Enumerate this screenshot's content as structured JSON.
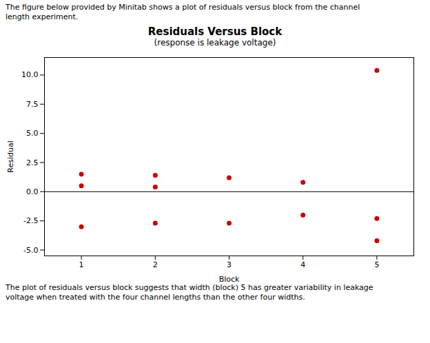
{
  "chart_data": {
    "type": "scatter",
    "title": "Residuals Versus Block",
    "subtitle": "(response is leakage voltage)",
    "annotations": [
      "The figure below provided by Minitab shows a plot of residuals versus block from the channel\nlength experiment.",
      "The plot of residuals versus block suggests that width (block) 5 has greater variability in leakage\nvoltage when treated with the four channel lengths than the other four widths."
    ],
    "xlabel": "Block",
    "ylabel": "Residual",
    "x": [
      1,
      1,
      1,
      2,
      2,
      2,
      3,
      3,
      4,
      4,
      5,
      5,
      5
    ],
    "values": [
      1.5,
      0.5,
      -3.0,
      1.4,
      0.4,
      -2.7,
      1.2,
      -2.7,
      0.8,
      -2.0,
      10.4,
      -2.3,
      -4.2
    ],
    "color": "#cc0000",
    "reference_line": 0,
    "xlim": [
      0.5,
      5.5
    ],
    "ylim": [
      -5.5,
      11.5
    ],
    "xticks": [
      1,
      2,
      3,
      4,
      5
    ],
    "yticks": [
      {
        "value": -5,
        "label": "-5.0"
      },
      {
        "value": -2.5,
        "label": "-2.5"
      },
      {
        "value": 0,
        "label": "0.0"
      },
      {
        "value": 2.5,
        "label": "2.5"
      },
      {
        "value": 5,
        "label": "5.0"
      },
      {
        "value": 7.5,
        "label": "7.5"
      },
      {
        "value": 10,
        "label": "10.0"
      }
    ],
    "grid": false
  }
}
